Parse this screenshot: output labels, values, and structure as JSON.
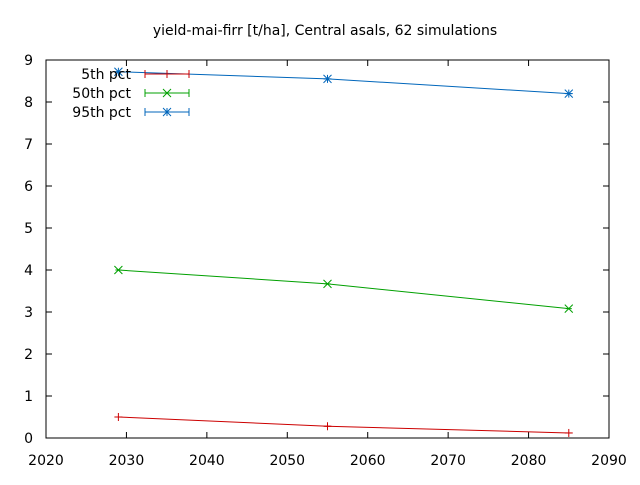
{
  "chart_data": {
    "type": "line",
    "title": "yield-mai-firr [t/ha], Central asals, 62 simulations",
    "xlabel": "",
    "ylabel": "",
    "xlim": [
      2020,
      2090
    ],
    "ylim": [
      0,
      9
    ],
    "x_ticks": [
      "2020",
      "2030",
      "2040",
      "2050",
      "2060",
      "2070",
      "2080",
      "2090"
    ],
    "y_ticks": [
      "0",
      "1",
      "2",
      "3",
      "4",
      "5",
      "6",
      "7",
      "8",
      "9"
    ],
    "grid": false,
    "legend_position": "top-left",
    "series": [
      {
        "name": "5th pct",
        "color": "#cc0000",
        "marker": "plus",
        "x": [
          2029,
          2055,
          2085
        ],
        "y": [
          0.5,
          0.28,
          0.12
        ]
      },
      {
        "name": "50th pct",
        "color": "#00a000",
        "marker": "cross",
        "x": [
          2029,
          2055,
          2085
        ],
        "y": [
          4.0,
          3.67,
          3.08
        ]
      },
      {
        "name": "95th pct",
        "color": "#0066bb",
        "marker": "star",
        "x": [
          2029,
          2055,
          2085
        ],
        "y": [
          8.72,
          8.55,
          8.2
        ]
      }
    ]
  }
}
